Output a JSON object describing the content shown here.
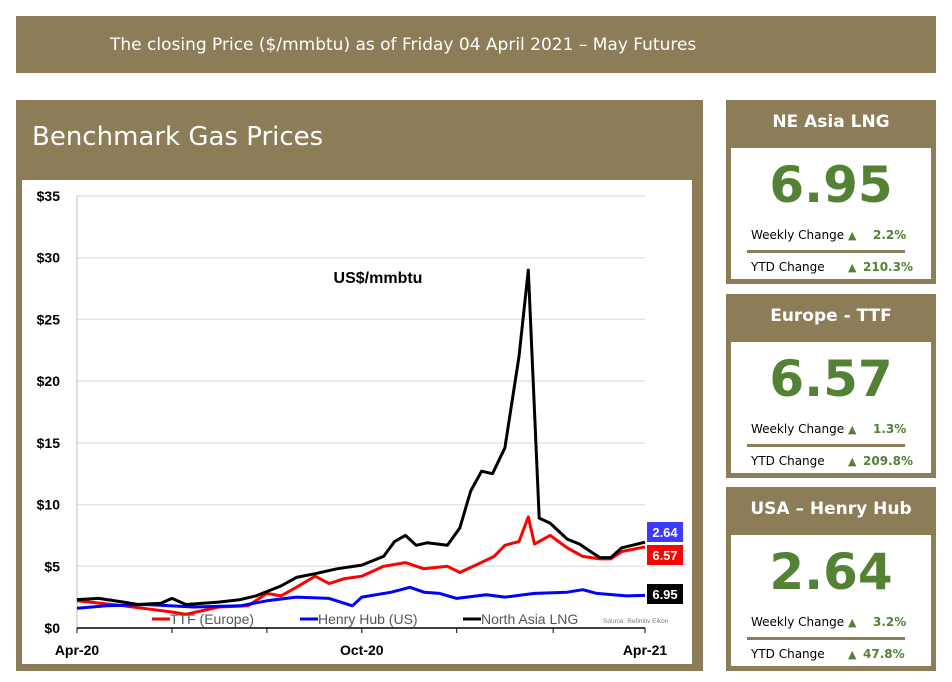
{
  "banner": "The closing Price ($/mmbtu) as of  Friday 04 April 2021 – May Futures",
  "panel_title": "Benchmark Gas Prices",
  "cards": [
    {
      "title": "NE Asia LNG",
      "value": "6.95",
      "weekly_label": "Weekly Change",
      "weekly": "2.2%",
      "ytd_label": "YTD Change",
      "ytd": "210.3%",
      "weekly_dir": "up",
      "ytd_dir": "up"
    },
    {
      "title": "Europe - TTF",
      "value": "6.57",
      "weekly_label": "Weekly Change",
      "weekly": "1.3%",
      "ytd_label": "YTD Change",
      "ytd": "209.8%",
      "weekly_dir": "up",
      "ytd_dir": "up"
    },
    {
      "title": "USA – Henry Hub",
      "value": "2.64",
      "weekly_label": "Weekly Change",
      "weekly": "3.2%",
      "ytd_label": "YTD Change",
      "ytd": "47.8%",
      "weekly_dir": "up",
      "ytd_dir": "up"
    }
  ],
  "colors": {
    "brand": "#8c7d58",
    "positive": "#548235",
    "ttf": "#ff0000",
    "henry_hub": "#0000ff",
    "lng": "#000000"
  },
  "chart_data": {
    "type": "line",
    "annotation": "US$/mmbtu",
    "source": "Source: Refinitiv Eikon",
    "ylim": [
      0,
      35
    ],
    "xlim": [
      "2020-04-01",
      "2021-04-01"
    ],
    "yticks": [
      "$0",
      "$5",
      "$10",
      "$15",
      "$20",
      "$25",
      "$30",
      "$35"
    ],
    "ytick_values": [
      0,
      5,
      10,
      15,
      20,
      25,
      30,
      35
    ],
    "xticks": [
      {
        "label": "Apr-20",
        "date": "2020-04-01"
      },
      {
        "label": "Oct-20",
        "date": "2020-10-01"
      },
      {
        "label": "Apr-21",
        "date": "2021-04-01"
      }
    ],
    "grid": true,
    "legend_position": "bottom",
    "series": [
      {
        "name": "TTF (Europe)",
        "color": "#ff0000",
        "end_label": "6.57",
        "x": [
          "2020-04-01",
          "2020-05-01",
          "2020-06-01",
          "2020-06-10",
          "2020-07-01",
          "2020-07-20",
          "2020-08-01",
          "2020-08-10",
          "2020-08-20",
          "2020-09-01",
          "2020-09-10",
          "2020-09-20",
          "2020-10-01",
          "2020-10-15",
          "2020-10-29",
          "2020-11-10",
          "2020-11-25",
          "2020-12-03",
          "2020-12-15",
          "2020-12-25",
          "2021-01-01",
          "2021-01-10",
          "2021-01-16",
          "2021-01-20",
          "2021-01-30",
          "2021-02-10",
          "2021-02-20",
          "2021-03-03",
          "2021-03-10",
          "2021-03-17",
          "2021-04-01"
        ],
        "y": [
          2.2,
          1.8,
          1.3,
          1.1,
          1.7,
          1.8,
          2.8,
          2.6,
          3.3,
          4.2,
          3.6,
          4.0,
          4.2,
          5.0,
          5.3,
          4.8,
          5.0,
          4.5,
          5.2,
          5.8,
          6.7,
          7.0,
          9.0,
          6.8,
          7.5,
          6.5,
          5.8,
          5.6,
          5.6,
          6.2,
          6.57
        ]
      },
      {
        "name": "Henry Hub (US)",
        "color": "#0000ff",
        "end_label": "2.64",
        "x": [
          "2020-04-01",
          "2020-04-20",
          "2020-05-15",
          "2020-06-15",
          "2020-07-15",
          "2020-08-01",
          "2020-08-20",
          "2020-09-10",
          "2020-09-25",
          "2020-10-01",
          "2020-10-20",
          "2020-11-01",
          "2020-11-10",
          "2020-11-20",
          "2020-12-01",
          "2020-12-20",
          "2021-01-01",
          "2021-01-20",
          "2021-02-10",
          "2021-02-20",
          "2021-03-01",
          "2021-03-20",
          "2021-04-01"
        ],
        "y": [
          1.6,
          1.8,
          1.9,
          1.7,
          1.8,
          2.2,
          2.5,
          2.4,
          1.8,
          2.5,
          2.9,
          3.3,
          2.9,
          2.8,
          2.4,
          2.7,
          2.5,
          2.8,
          2.9,
          3.1,
          2.8,
          2.6,
          2.64
        ]
      },
      {
        "name": "North Asia LNG",
        "color": "#000000",
        "end_label": "6.95",
        "x": [
          "2020-04-01",
          "2020-04-15",
          "2020-05-01",
          "2020-05-10",
          "2020-05-25",
          "2020-06-01",
          "2020-06-10",
          "2020-07-01",
          "2020-07-15",
          "2020-07-25",
          "2020-08-10",
          "2020-08-20",
          "2020-09-01",
          "2020-09-15",
          "2020-10-01",
          "2020-10-15",
          "2020-10-22",
          "2020-10-29",
          "2020-11-05",
          "2020-11-12",
          "2020-11-25",
          "2020-12-03",
          "2020-12-10",
          "2020-12-17",
          "2020-12-24",
          "2021-01-01",
          "2021-01-10",
          "2021-01-16",
          "2021-01-23",
          "2021-01-30",
          "2021-02-10",
          "2021-02-18",
          "2021-02-25",
          "2021-03-03",
          "2021-03-10",
          "2021-03-17",
          "2021-04-01"
        ],
        "y": [
          2.3,
          2.4,
          2.1,
          1.9,
          2.0,
          2.4,
          1.9,
          2.1,
          2.3,
          2.6,
          3.4,
          4.1,
          4.4,
          4.8,
          5.1,
          5.8,
          7.0,
          7.5,
          6.7,
          6.9,
          6.7,
          8.1,
          11.1,
          12.7,
          12.5,
          14.6,
          22,
          29,
          8.9,
          8.5,
          7.2,
          6.8,
          6.2,
          5.7,
          5.7,
          6.5,
          6.95
        ]
      }
    ]
  }
}
